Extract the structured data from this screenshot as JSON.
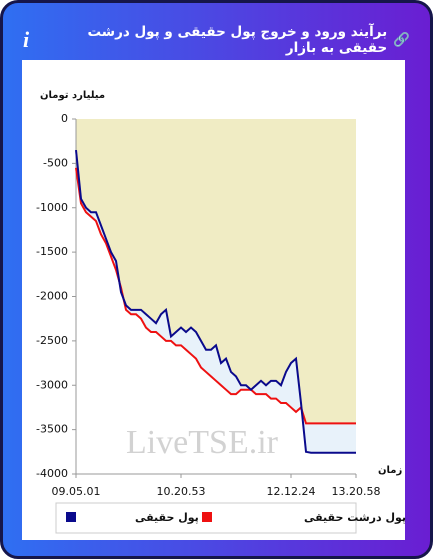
{
  "header": {
    "title": "برآیند ورود و خروج پول حقیقی و پول درشت حقیقی به بازار",
    "info_icon": "i"
  },
  "watermark": "LiveTSE.ir",
  "chart_data": {
    "type": "line",
    "ylabel": "میلیارد تومان",
    "xlabel": "زمان",
    "xlim": [
      0,
      56
    ],
    "xticks": [
      {
        "value": 0,
        "label": "09.05.01"
      },
      {
        "value": 21,
        "label": "10.20.53"
      },
      {
        "value": 43,
        "label": "12.12.24"
      },
      {
        "value": 56,
        "label": "13.20.58"
      }
    ],
    "ylim": [
      -4000,
      0
    ],
    "yticks": [
      0,
      -500,
      -1000,
      -1500,
      -2000,
      -2500,
      -3000,
      -3500,
      -4000
    ],
    "fill_color": "#f0ecc4",
    "between_color": "#e8f2fa",
    "series": [
      {
        "name": "پول حقیقی",
        "color": "#0a0a8c",
        "values": [
          -350,
          -900,
          -1000,
          -1050,
          -1050,
          -1200,
          -1350,
          -1500,
          -1600,
          -1950,
          -2100,
          -2150,
          -2150,
          -2150,
          -2200,
          -2250,
          -2300,
          -2200,
          -2150,
          -2450,
          -2400,
          -2350,
          -2400,
          -2350,
          -2400,
          -2500,
          -2600,
          -2600,
          -2550,
          -2750,
          -2700,
          -2850,
          -2900,
          -3000,
          -3000,
          -3050,
          -3000,
          -2950,
          -3000,
          -2950,
          -2950,
          -3000,
          -2850,
          -2750,
          -2700,
          -3200,
          -3750,
          -3760,
          -3760,
          -3760,
          -3760,
          -3760,
          -3760,
          -3760,
          -3760,
          -3760,
          -3760
        ]
      },
      {
        "name": "پول درشت حقیقی",
        "color": "#ee1111",
        "values": [
          -550,
          -950,
          -1050,
          -1100,
          -1150,
          -1300,
          -1400,
          -1550,
          -1700,
          -1900,
          -2150,
          -2200,
          -2200,
          -2250,
          -2350,
          -2400,
          -2400,
          -2450,
          -2500,
          -2500,
          -2550,
          -2550,
          -2600,
          -2650,
          -2700,
          -2800,
          -2850,
          -2900,
          -2950,
          -3000,
          -3050,
          -3100,
          -3100,
          -3050,
          -3050,
          -3050,
          -3100,
          -3100,
          -3100,
          -3150,
          -3150,
          -3200,
          -3200,
          -3250,
          -3300,
          -3250,
          -3430,
          -3430,
          -3430,
          -3430,
          -3430,
          -3430,
          -3430,
          -3430,
          -3430,
          -3430,
          -3430
        ]
      }
    ]
  }
}
